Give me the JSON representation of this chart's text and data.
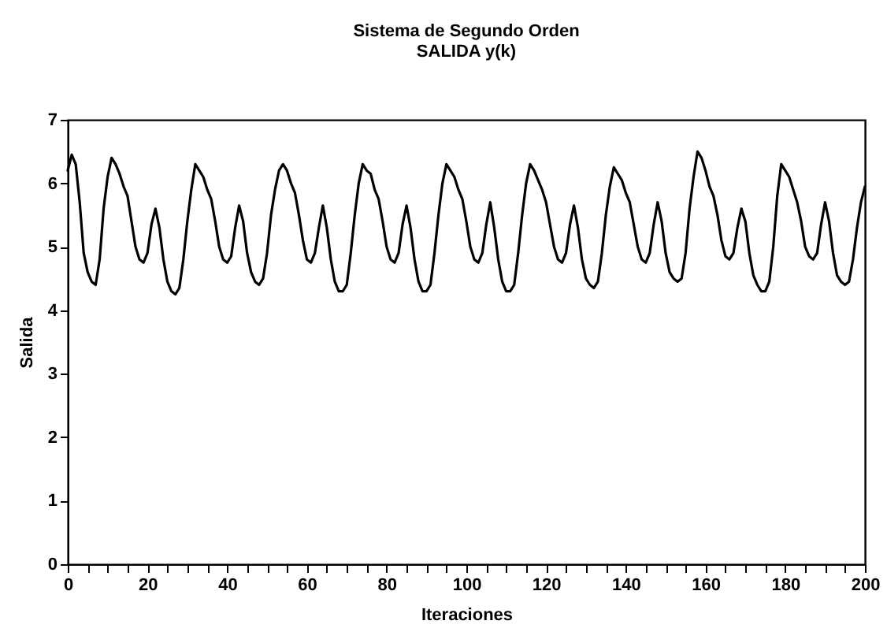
{
  "chart_data": {
    "type": "line",
    "title": "Sistema de Segundo Orden",
    "subtitle": "SALIDA y(k)",
    "xlabel": "Iteraciones",
    "ylabel": "Salida",
    "x": [
      0,
      1,
      2,
      3,
      4,
      5,
      6,
      7,
      8,
      9,
      10,
      11,
      12,
      13,
      14,
      15,
      16,
      17,
      18,
      19,
      20,
      21,
      22,
      23,
      24,
      25,
      26,
      27,
      28,
      29,
      30,
      31,
      32,
      33,
      34,
      35,
      36,
      37,
      38,
      39,
      40,
      41,
      42,
      43,
      44,
      45,
      46,
      47,
      48,
      49,
      50,
      51,
      52,
      53,
      54,
      55,
      56,
      57,
      58,
      59,
      60,
      61,
      62,
      63,
      64,
      65,
      66,
      67,
      68,
      69,
      70,
      71,
      72,
      73,
      74,
      75,
      76,
      77,
      78,
      79,
      80,
      81,
      82,
      83,
      84,
      85,
      86,
      87,
      88,
      89,
      90,
      91,
      92,
      93,
      94,
      95,
      96,
      97,
      98,
      99,
      100,
      101,
      102,
      103,
      104,
      105,
      106,
      107,
      108,
      109,
      110,
      111,
      112,
      113,
      114,
      115,
      116,
      117,
      118,
      119,
      120,
      121,
      122,
      123,
      124,
      125,
      126,
      127,
      128,
      129,
      130,
      131,
      132,
      133,
      134,
      135,
      136,
      137,
      138,
      139,
      140,
      141,
      142,
      143,
      144,
      145,
      146,
      147,
      148,
      149,
      150,
      151,
      152,
      153,
      154,
      155,
      156,
      157,
      158,
      159,
      160,
      161,
      162,
      163,
      164,
      165,
      166,
      167,
      168,
      169,
      170,
      171,
      172,
      173,
      174,
      175,
      176,
      177,
      178,
      179,
      180,
      181,
      182,
      183,
      184,
      185,
      186,
      187,
      188,
      189,
      190,
      191,
      192,
      193,
      194,
      195,
      196,
      197,
      198,
      199,
      200
    ],
    "series": [
      {
        "color": "#000000",
        "values": [
          6.2,
          6.45,
          6.3,
          5.7,
          4.9,
          4.6,
          4.45,
          4.4,
          4.8,
          5.6,
          6.1,
          6.4,
          6.3,
          6.15,
          5.95,
          5.8,
          5.4,
          5.0,
          4.8,
          4.75,
          4.9,
          5.35,
          5.6,
          5.3,
          4.8,
          4.45,
          4.3,
          4.25,
          4.35,
          4.8,
          5.4,
          5.9,
          6.3,
          6.2,
          6.1,
          5.9,
          5.75,
          5.4,
          5.0,
          4.8,
          4.75,
          4.85,
          5.3,
          5.65,
          5.4,
          4.9,
          4.6,
          4.45,
          4.4,
          4.5,
          4.9,
          5.5,
          5.9,
          6.2,
          6.3,
          6.2,
          6.0,
          5.85,
          5.5,
          5.1,
          4.8,
          4.75,
          4.9,
          5.3,
          5.65,
          5.3,
          4.8,
          4.45,
          4.3,
          4.3,
          4.4,
          4.9,
          5.5,
          6.0,
          6.3,
          6.2,
          6.15,
          5.9,
          5.75,
          5.4,
          5.0,
          4.8,
          4.75,
          4.9,
          5.35,
          5.65,
          5.3,
          4.8,
          4.45,
          4.3,
          4.3,
          4.4,
          4.9,
          5.5,
          6.0,
          6.3,
          6.2,
          6.1,
          5.9,
          5.75,
          5.4,
          5.0,
          4.8,
          4.75,
          4.9,
          5.35,
          5.7,
          5.3,
          4.8,
          4.45,
          4.3,
          4.3,
          4.4,
          4.9,
          5.5,
          6.0,
          6.3,
          6.2,
          6.05,
          5.9,
          5.7,
          5.35,
          5.0,
          4.8,
          4.75,
          4.9,
          5.35,
          5.65,
          5.3,
          4.8,
          4.5,
          4.4,
          4.35,
          4.45,
          4.9,
          5.5,
          5.95,
          6.25,
          6.15,
          6.05,
          5.85,
          5.7,
          5.35,
          5.0,
          4.8,
          4.75,
          4.9,
          5.35,
          5.7,
          5.4,
          4.9,
          4.6,
          4.5,
          4.45,
          4.5,
          4.9,
          5.6,
          6.1,
          6.5,
          6.4,
          6.2,
          5.95,
          5.8,
          5.5,
          5.1,
          4.85,
          4.8,
          4.9,
          5.3,
          5.6,
          5.4,
          4.9,
          4.55,
          4.4,
          4.3,
          4.3,
          4.45,
          5.0,
          5.8,
          6.3,
          6.2,
          6.1,
          5.9,
          5.7,
          5.4,
          5.0,
          4.85,
          4.8,
          4.9,
          5.35,
          5.7,
          5.4,
          4.9,
          4.55,
          4.45,
          4.4,
          4.45,
          4.8,
          5.3,
          5.7,
          5.95
        ]
      }
    ],
    "xlim": [
      0,
      200
    ],
    "xticks": [
      0,
      {
        "value": 5,
        "label": null
      },
      {
        "value": 10,
        "label": null
      },
      {
        "value": 15,
        "label": null
      },
      20,
      {
        "value": 25,
        "label": null
      },
      {
        "value": 30,
        "label": null
      },
      {
        "value": 35,
        "label": null
      },
      40,
      {
        "value": 45,
        "label": null
      },
      {
        "value": 50,
        "label": null
      },
      {
        "value": 55,
        "label": null
      },
      60,
      {
        "value": 65,
        "label": null
      },
      {
        "value": 70,
        "label": null
      },
      {
        "value": 75,
        "label": null
      },
      80,
      {
        "value": 85,
        "label": null
      },
      {
        "value": 90,
        "label": null
      },
      {
        "value": 95,
        "label": null
      },
      100,
      {
        "value": 105,
        "label": null
      },
      {
        "value": 110,
        "label": null
      },
      {
        "value": 115,
        "label": null
      },
      120,
      {
        "value": 125,
        "label": null
      },
      {
        "value": 130,
        "label": null
      },
      {
        "value": 135,
        "label": null
      },
      140,
      {
        "value": 145,
        "label": null
      },
      {
        "value": 150,
        "label": null
      },
      {
        "value": 155,
        "label": null
      },
      160,
      {
        "value": 165,
        "label": null
      },
      {
        "value": 170,
        "label": null
      },
      {
        "value": 175,
        "label": null
      },
      180,
      {
        "value": 185,
        "label": null
      },
      {
        "value": 190,
        "label": null
      },
      {
        "value": 195,
        "label": null
      },
      200
    ],
    "ylim": [
      0,
      7
    ],
    "yticks": [
      0,
      1,
      2,
      3,
      4,
      5,
      6,
      7
    ],
    "grid": false,
    "marker": "none",
    "line_style": "solid"
  }
}
